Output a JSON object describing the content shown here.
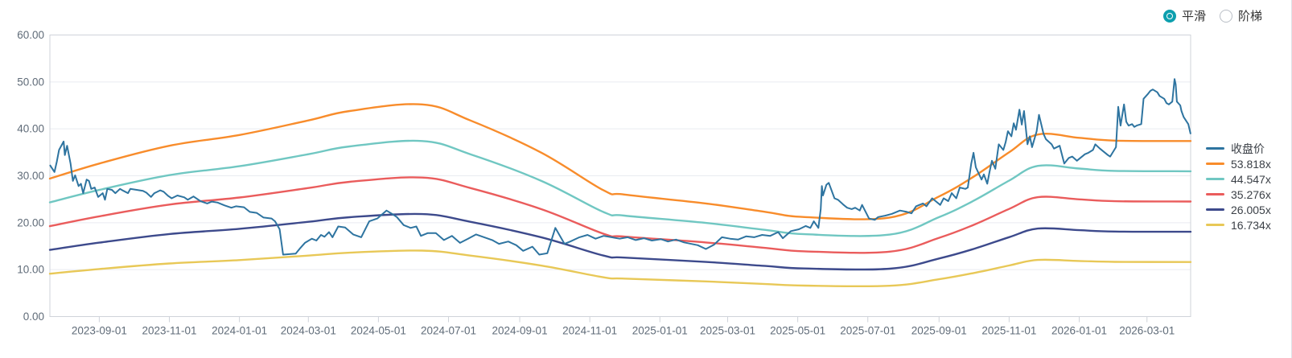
{
  "toggle": {
    "options": [
      {
        "label": "平滑",
        "selected": true
      },
      {
        "label": "阶梯",
        "selected": false
      }
    ]
  },
  "legend": {
    "items": [
      {
        "label": "收盘价",
        "color": "#2e74a0",
        "type": "price"
      },
      {
        "label": "53.818x",
        "color": "#f88c2b",
        "multiple": 53.818
      },
      {
        "label": "44.547x",
        "color": "#70c7c2",
        "multiple": 44.547
      },
      {
        "label": "35.276x",
        "color": "#ea5c5c",
        "multiple": 35.276
      },
      {
        "label": "26.005x",
        "color": "#3d4a8c",
        "multiple": 26.005
      },
      {
        "label": "16.734x",
        "color": "#e8c857",
        "multiple": 16.734
      }
    ]
  },
  "colors": {
    "accent": "#0d9fae",
    "grid": "#e9ebf0",
    "border": "#cfd3da",
    "axis_text": "#5f6b78",
    "legend_text": "#3a3f46"
  },
  "chart_data": {
    "type": "line",
    "title": "",
    "xlabel": "",
    "ylabel": "",
    "ylim": [
      0,
      60
    ],
    "grid": "horizontal",
    "legend_position": "right",
    "domain": {
      "start": "2023-07-20",
      "end": "2026-04-08"
    },
    "y_axis": {
      "min": 0,
      "max": 60,
      "tick_labels": [
        "0.00",
        "10.00",
        "20.00",
        "30.00",
        "40.00",
        "50.00",
        "60.00"
      ]
    },
    "x_axis": {
      "tick_labels": [
        "2023-09-01",
        "2023-11-01",
        "2024-01-01",
        "2024-03-01",
        "2024-05-01",
        "2024-07-01",
        "2024-09-01",
        "2024-11-01",
        "2025-01-01",
        "2025-03-01",
        "2025-05-01",
        "2025-07-01",
        "2025-09-01",
        "2025-11-01",
        "2026-01-01",
        "2026-03-01"
      ]
    },
    "pe_bands": {
      "base_multiple": 53.818,
      "multiples": [
        53.818,
        44.547,
        35.276,
        26.005,
        16.734
      ],
      "anchors_at_base_multiple": [
        [
          "2023-07-20",
          29.4
        ],
        [
          "2023-09-01",
          32.6
        ],
        [
          "2023-11-01",
          36.4
        ],
        [
          "2024-01-01",
          38.7
        ],
        [
          "2024-03-01",
          41.8
        ],
        [
          "2024-04-06",
          43.8
        ],
        [
          "2024-06-08",
          45.2
        ],
        [
          "2024-07-20",
          41.8
        ],
        [
          "2024-09-20",
          34.9
        ],
        [
          "2024-11-13",
          26.9
        ],
        [
          "2024-12-01",
          26.0
        ],
        [
          "2025-02-10",
          24.1
        ],
        [
          "2025-04-03",
          22.3
        ],
        [
          "2025-05-07",
          21.2
        ],
        [
          "2025-07-20",
          21.1
        ],
        [
          "2025-09-01",
          25.6
        ],
        [
          "2025-10-01",
          29.8
        ],
        [
          "2025-11-01",
          35.0
        ],
        [
          "2025-11-26",
          38.8
        ],
        [
          "2026-01-01",
          38.1
        ],
        [
          "2026-02-01",
          37.5
        ],
        [
          "2026-04-08",
          37.4
        ]
      ]
    },
    "price": {
      "name": "收盘价",
      "points": [
        [
          "2023-07-20",
          32.3
        ],
        [
          "2023-07-24",
          30.8
        ],
        [
          "2023-07-26",
          33.0
        ],
        [
          "2023-07-28",
          35.5
        ],
        [
          "2023-08-01",
          37.3
        ],
        [
          "2023-08-02",
          34.4
        ],
        [
          "2023-08-04",
          36.4
        ],
        [
          "2023-08-07",
          32.6
        ],
        [
          "2023-08-09",
          28.9
        ],
        [
          "2023-08-11",
          30.1
        ],
        [
          "2023-08-14",
          27.8
        ],
        [
          "2023-08-16",
          28.3
        ],
        [
          "2023-08-18",
          26.3
        ],
        [
          "2023-08-21",
          29.2
        ],
        [
          "2023-08-23",
          28.9
        ],
        [
          "2023-08-25",
          27.2
        ],
        [
          "2023-08-28",
          27.5
        ],
        [
          "2023-08-31",
          25.5
        ],
        [
          "2023-09-04",
          26.3
        ],
        [
          "2023-09-06",
          24.9
        ],
        [
          "2023-09-08",
          27.2
        ],
        [
          "2023-09-12",
          27.0
        ],
        [
          "2023-09-15",
          26.3
        ],
        [
          "2023-09-19",
          27.2
        ],
        [
          "2023-09-22",
          26.8
        ],
        [
          "2023-09-26",
          26.3
        ],
        [
          "2023-09-28",
          27.2
        ],
        [
          "2023-10-09",
          26.8
        ],
        [
          "2023-10-12",
          26.4
        ],
        [
          "2023-10-16",
          25.5
        ],
        [
          "2023-10-19",
          26.3
        ],
        [
          "2023-10-24",
          26.9
        ],
        [
          "2023-10-27",
          26.6
        ],
        [
          "2023-10-31",
          25.7
        ],
        [
          "2023-11-03",
          25.2
        ],
        [
          "2023-11-08",
          25.8
        ],
        [
          "2023-11-14",
          25.4
        ],
        [
          "2023-11-17",
          24.9
        ],
        [
          "2023-11-22",
          25.6
        ],
        [
          "2023-11-28",
          24.6
        ],
        [
          "2023-12-04",
          24.1
        ],
        [
          "2023-12-08",
          24.5
        ],
        [
          "2023-12-13",
          24.3
        ],
        [
          "2023-12-19",
          23.7
        ],
        [
          "2023-12-25",
          23.2
        ],
        [
          "2023-12-29",
          23.5
        ],
        [
          "2024-01-05",
          23.3
        ],
        [
          "2024-01-10",
          22.3
        ],
        [
          "2024-01-16",
          22.1
        ],
        [
          "2024-01-22",
          21.1
        ],
        [
          "2024-01-29",
          20.9
        ],
        [
          "2024-02-01",
          20.3
        ],
        [
          "2024-02-05",
          18.6
        ],
        [
          "2024-02-08",
          13.2
        ],
        [
          "2024-02-19",
          13.4
        ],
        [
          "2024-02-23",
          14.6
        ],
        [
          "2024-02-27",
          15.7
        ],
        [
          "2024-03-04",
          16.6
        ],
        [
          "2024-03-08",
          16.2
        ],
        [
          "2024-03-12",
          17.4
        ],
        [
          "2024-03-15",
          17.0
        ],
        [
          "2024-03-19",
          18.0
        ],
        [
          "2024-03-22",
          16.9
        ],
        [
          "2024-03-27",
          19.2
        ],
        [
          "2024-04-02",
          19.0
        ],
        [
          "2024-04-09",
          17.5
        ],
        [
          "2024-04-16",
          16.9
        ],
        [
          "2024-04-23",
          20.3
        ],
        [
          "2024-04-30",
          20.9
        ],
        [
          "2024-05-08",
          22.6
        ],
        [
          "2024-05-14",
          21.7
        ],
        [
          "2024-05-17",
          21.2
        ],
        [
          "2024-05-23",
          19.5
        ],
        [
          "2024-05-29",
          18.9
        ],
        [
          "2024-06-03",
          19.2
        ],
        [
          "2024-06-07",
          17.2
        ],
        [
          "2024-06-13",
          17.8
        ],
        [
          "2024-06-20",
          17.8
        ],
        [
          "2024-06-27",
          16.3
        ],
        [
          "2024-07-04",
          17.2
        ],
        [
          "2024-07-11",
          15.7
        ],
        [
          "2024-07-18",
          16.6
        ],
        [
          "2024-07-25",
          17.5
        ],
        [
          "2024-08-01",
          16.9
        ],
        [
          "2024-08-08",
          16.3
        ],
        [
          "2024-08-14",
          15.5
        ],
        [
          "2024-08-22",
          16.0
        ],
        [
          "2024-08-29",
          15.2
        ],
        [
          "2024-09-04",
          14.0
        ],
        [
          "2024-09-12",
          14.9
        ],
        [
          "2024-09-18",
          13.2
        ],
        [
          "2024-09-25",
          13.5
        ],
        [
          "2024-10-02",
          18.9
        ],
        [
          "2024-10-10",
          15.5
        ],
        [
          "2024-10-15",
          16.0
        ],
        [
          "2024-10-23",
          16.9
        ],
        [
          "2024-10-30",
          17.4
        ],
        [
          "2024-11-06",
          16.6
        ],
        [
          "2024-11-13",
          17.2
        ],
        [
          "2024-11-20",
          16.9
        ],
        [
          "2024-11-27",
          16.6
        ],
        [
          "2024-12-04",
          16.9
        ],
        [
          "2024-12-11",
          16.3
        ],
        [
          "2024-12-18",
          16.7
        ],
        [
          "2024-12-25",
          16.2
        ],
        [
          "2025-01-02",
          16.5
        ],
        [
          "2025-01-08",
          16.0
        ],
        [
          "2025-01-15",
          16.4
        ],
        [
          "2025-01-22",
          15.8
        ],
        [
          "2025-02-03",
          15.2
        ],
        [
          "2025-02-10",
          14.4
        ],
        [
          "2025-02-17",
          15.3
        ],
        [
          "2025-02-24",
          16.9
        ],
        [
          "2025-03-03",
          16.6
        ],
        [
          "2025-03-10",
          16.4
        ],
        [
          "2025-03-17",
          17.1
        ],
        [
          "2025-03-24",
          16.9
        ],
        [
          "2025-03-31",
          17.4
        ],
        [
          "2025-04-07",
          17.2
        ],
        [
          "2025-04-14",
          18.0
        ],
        [
          "2025-04-18",
          16.7
        ],
        [
          "2025-04-25",
          18.2
        ],
        [
          "2025-05-02",
          18.6
        ],
        [
          "2025-05-08",
          19.3
        ],
        [
          "2025-05-12",
          18.9
        ],
        [
          "2025-05-15",
          20.3
        ],
        [
          "2025-05-19",
          18.9
        ],
        [
          "2025-05-21",
          22.9
        ],
        [
          "2025-05-22",
          27.8
        ],
        [
          "2025-05-23",
          25.8
        ],
        [
          "2025-05-26",
          28.1
        ],
        [
          "2025-05-28",
          28.5
        ],
        [
          "2025-06-02",
          25.2
        ],
        [
          "2025-06-05",
          24.9
        ],
        [
          "2025-06-10",
          23.8
        ],
        [
          "2025-06-13",
          23.2
        ],
        [
          "2025-06-17",
          22.9
        ],
        [
          "2025-06-20",
          23.2
        ],
        [
          "2025-06-24",
          22.6
        ],
        [
          "2025-06-26",
          23.8
        ],
        [
          "2025-07-02",
          20.9
        ],
        [
          "2025-07-07",
          20.6
        ],
        [
          "2025-07-10",
          21.2
        ],
        [
          "2025-07-16",
          21.5
        ],
        [
          "2025-07-22",
          21.9
        ],
        [
          "2025-07-29",
          22.6
        ],
        [
          "2025-08-04",
          22.3
        ],
        [
          "2025-08-08",
          22.0
        ],
        [
          "2025-08-12",
          23.5
        ],
        [
          "2025-08-18",
          24.1
        ],
        [
          "2025-08-21",
          23.5
        ],
        [
          "2025-08-26",
          25.2
        ],
        [
          "2025-08-29",
          24.6
        ],
        [
          "2025-09-02",
          23.8
        ],
        [
          "2025-09-05",
          25.2
        ],
        [
          "2025-09-09",
          24.6
        ],
        [
          "2025-09-12",
          26.3
        ],
        [
          "2025-09-16",
          25.2
        ],
        [
          "2025-09-19",
          27.5
        ],
        [
          "2025-09-24",
          27.2
        ],
        [
          "2025-09-26",
          27.5
        ],
        [
          "2025-09-29",
          32.6
        ],
        [
          "2025-10-01",
          34.9
        ],
        [
          "2025-10-03",
          31.8
        ],
        [
          "2025-10-08",
          29.2
        ],
        [
          "2025-10-10",
          30.3
        ],
        [
          "2025-10-13",
          28.3
        ],
        [
          "2025-10-15",
          30.9
        ],
        [
          "2025-10-17",
          33.2
        ],
        [
          "2025-10-20",
          31.5
        ],
        [
          "2025-10-23",
          36.7
        ],
        [
          "2025-10-27",
          35.5
        ],
        [
          "2025-10-29",
          37.2
        ],
        [
          "2025-10-31",
          39.5
        ],
        [
          "2025-11-03",
          38.4
        ],
        [
          "2025-11-05",
          41.2
        ],
        [
          "2025-11-07",
          39.8
        ],
        [
          "2025-11-10",
          44.1
        ],
        [
          "2025-11-12",
          40.9
        ],
        [
          "2025-11-14",
          43.8
        ],
        [
          "2025-11-17",
          36.7
        ],
        [
          "2025-11-19",
          38.4
        ],
        [
          "2025-11-21",
          36.1
        ],
        [
          "2025-11-25",
          39.5
        ],
        [
          "2025-11-27",
          43.0
        ],
        [
          "2025-12-01",
          38.9
        ],
        [
          "2025-12-03",
          37.8
        ],
        [
          "2025-12-08",
          36.7
        ],
        [
          "2025-12-10",
          35.8
        ],
        [
          "2025-12-15",
          36.4
        ],
        [
          "2025-12-19",
          32.6
        ],
        [
          "2025-12-23",
          33.8
        ],
        [
          "2025-12-26",
          34.1
        ],
        [
          "2025-12-30",
          33.2
        ],
        [
          "2026-01-02",
          33.8
        ],
        [
          "2026-01-06",
          34.6
        ],
        [
          "2026-01-09",
          34.9
        ],
        [
          "2026-01-13",
          35.5
        ],
        [
          "2026-01-15",
          36.7
        ],
        [
          "2026-01-19",
          35.8
        ],
        [
          "2026-01-26",
          34.4
        ],
        [
          "2026-01-28",
          34.1
        ],
        [
          "2026-01-30",
          34.9
        ],
        [
          "2026-02-02",
          36.1
        ],
        [
          "2026-02-04",
          44.7
        ],
        [
          "2026-02-06",
          40.7
        ],
        [
          "2026-02-09",
          45.2
        ],
        [
          "2026-02-11",
          41.5
        ],
        [
          "2026-02-13",
          40.7
        ],
        [
          "2026-02-16",
          41.0
        ],
        [
          "2026-02-18",
          40.4
        ],
        [
          "2026-02-20",
          40.7
        ],
        [
          "2026-02-24",
          41.0
        ],
        [
          "2026-02-26",
          46.4
        ],
        [
          "2026-03-02",
          47.5
        ],
        [
          "2026-03-04",
          48.1
        ],
        [
          "2026-03-06",
          48.4
        ],
        [
          "2026-03-10",
          47.8
        ],
        [
          "2026-03-12",
          47.0
        ],
        [
          "2026-03-16",
          46.4
        ],
        [
          "2026-03-18",
          45.5
        ],
        [
          "2026-03-20",
          45.2
        ],
        [
          "2026-03-23",
          45.8
        ],
        [
          "2026-03-25",
          50.6
        ],
        [
          "2026-03-26",
          49.5
        ],
        [
          "2026-03-27",
          45.8
        ],
        [
          "2026-03-30",
          45.0
        ],
        [
          "2026-03-31",
          43.8
        ],
        [
          "2026-04-02",
          42.5
        ],
        [
          "2026-04-06",
          41.0
        ],
        [
          "2026-04-08",
          38.9
        ]
      ]
    }
  }
}
